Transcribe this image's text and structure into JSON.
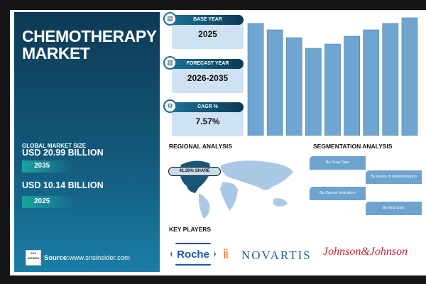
{
  "title_line1": "CHEMOTHERAPY",
  "title_line2": "MARKET",
  "global_market_size_label": "GLOBAL MARKET SIZE",
  "sizes": [
    {
      "value": "USD 20.99 BILLION",
      "year": "2035"
    },
    {
      "value": "USD 10.14 BILLION",
      "year": "2025"
    }
  ],
  "source": {
    "label": "Source:",
    "url": "www.snsinsider.com",
    "logo_text": "S&S INSIDER Strategy & Stats"
  },
  "stats": [
    {
      "label": "BASE YEAR",
      "value": "2025",
      "icon": "document-icon"
    },
    {
      "label": "FORECAST YEAR",
      "value": "2026-2035",
      "icon": "chart-icon"
    },
    {
      "label": "CAGR %",
      "value": "7.57%",
      "icon": "growth-icon"
    }
  ],
  "chart_data": {
    "type": "bar",
    "values": [
      158,
      149,
      138,
      123,
      129,
      140,
      149,
      158,
      166
    ],
    "note_colors": {
      "bar": "#6fa6d1"
    }
  },
  "regional": {
    "heading": "REGIONAL ANALYSIS",
    "share": "41.26% SHARE"
  },
  "segmentation": {
    "heading": "SEGMENTATION ANALYSIS",
    "items": [
      "By Drug Type",
      "By Route of Administration",
      "By Cancer Indication",
      "By End User"
    ]
  },
  "key_players": {
    "heading": "KEY PLAYERS",
    "logos": [
      "Roche",
      "NOVARTIS",
      "Johnson&Johnson"
    ]
  }
}
